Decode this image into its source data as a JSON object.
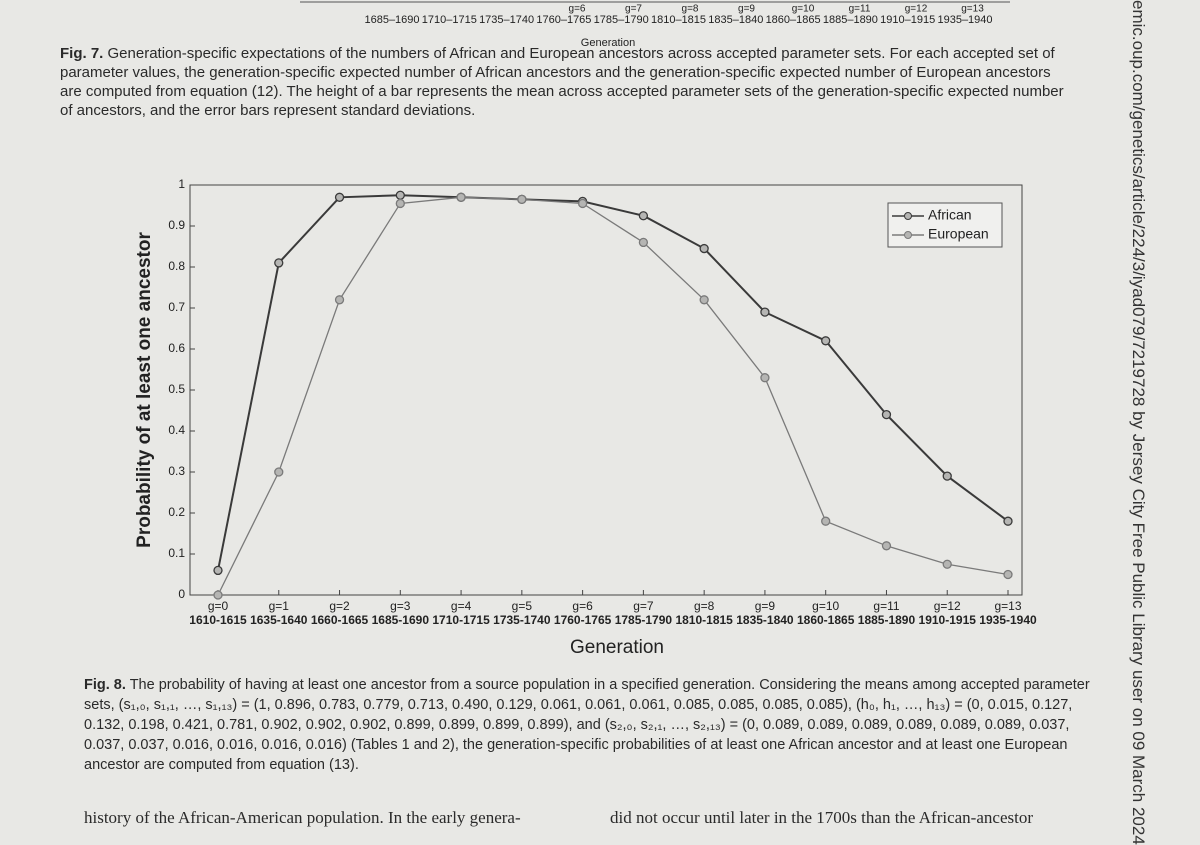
{
  "previous_figure": {
    "generation_labels": [
      "g=6",
      "g=7",
      "g=8",
      "g=9",
      "g=10",
      "g=11",
      "g=12",
      "g=13"
    ],
    "period_labels": [
      "1685–1690",
      "1710–1715",
      "1735–1740",
      "1760–1765",
      "1785–1790",
      "1810–1815",
      "1835–1840",
      "1860–1865",
      "1885–1890",
      "1910–1915",
      "1935–1940"
    ],
    "x_label": "Generation"
  },
  "fig7_caption": {
    "label": "Fig. 7.",
    "text": "Generation-specific expectations of the numbers of African and European ancestors across accepted parameter sets. For each accepted set of parameter values, the generation-specific expected number of African ancestors and the generation-specific expected number of European ancestors are computed from equation (12). The height of a bar represents the mean across accepted parameter sets of the generation-specific expected number of ancestors, and the error bars represent standard deviations."
  },
  "chart_data": {
    "type": "line",
    "x_label": "Generation",
    "y_label": "Probability of at least one ancestor",
    "categories": [
      "g=0",
      "g=1",
      "g=2",
      "g=3",
      "g=4",
      "g=5",
      "g=6",
      "g=7",
      "g=8",
      "g=9",
      "g=10",
      "g=11",
      "g=12",
      "g=13"
    ],
    "periods": [
      "1610-1615",
      "1635-1640",
      "1660-1665",
      "1685-1690",
      "1710-1715",
      "1735-1740",
      "1760-1765",
      "1785-1790",
      "1810-1815",
      "1835-1840",
      "1860-1865",
      "1885-1890",
      "1910-1915",
      "1935-1940"
    ],
    "series": [
      {
        "name": "African",
        "color": "#3a3a3a",
        "values": [
          0.06,
          0.81,
          0.97,
          0.975,
          0.97,
          0.965,
          0.96,
          0.925,
          0.845,
          0.69,
          0.62,
          0.44,
          0.29,
          0.18
        ]
      },
      {
        "name": "European",
        "color": "#7a7a7a",
        "values": [
          0.0,
          0.3,
          0.72,
          0.955,
          0.97,
          0.965,
          0.955,
          0.86,
          0.72,
          0.53,
          0.18,
          0.12,
          0.075,
          0.05
        ]
      }
    ],
    "ylim": [
      0,
      1
    ],
    "yticks": [
      0,
      0.1,
      0.2,
      0.3,
      0.4,
      0.5,
      0.6,
      0.7,
      0.8,
      0.9,
      1
    ],
    "grid": false,
    "legend": "upper right",
    "marker": "o"
  },
  "fig8_caption": {
    "label": "Fig. 8.",
    "text": "The probability of having at least one ancestor from a source population in a specified generation. Considering the means among accepted parameter sets, (s₁,₀, s₁,₁, …, s₁,₁₃) = (1, 0.896, 0.783, 0.779, 0.713, 0.490, 0.129, 0.061, 0.061, 0.061, 0.085, 0.085, 0.085, 0.085), (h₀, h₁, …, h₁₃) = (0, 0.015, 0.127, 0.132, 0.198, 0.421, 0.781, 0.902, 0.902, 0.902, 0.899, 0.899, 0.899, 0.899), and (s₂,₀, s₂,₁, …, s₂,₁₃) = (0, 0.089, 0.089, 0.089, 0.089, 0.089, 0.089, 0.037, 0.037, 0.037, 0.016, 0.016, 0.016, 0.016) (Tables 1 and 2), the generation-specific probabilities of at least one African ancestor and at least one European ancestor are computed from equation (13)."
  },
  "body_text": [
    "history of the African-American population. In the early genera-",
    "did not occur until later in the 1700s than the African-ancestor"
  ],
  "watermark": "emic.oup.com/genetics/article/224/3/iyad079/7219728 by Jersey City Free Public Library user on 09 March 2024"
}
